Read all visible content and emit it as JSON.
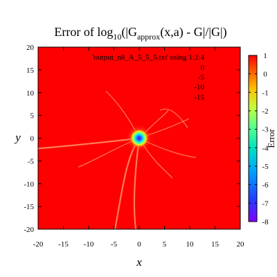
{
  "chart_data": {
    "type": "heatmap",
    "title": {
      "prefix": "Error of log",
      "base": "10",
      "mid": "(|G",
      "sub": "approx",
      "suffix": "(x,a) - G|/|G|)"
    },
    "xlabel": "x",
    "ylabel": "y",
    "colorbar_label": "Error",
    "xlim": [
      -20,
      20
    ],
    "ylim": [
      -20,
      20
    ],
    "x_ticks": [
      -20,
      -15,
      -10,
      -5,
      0,
      5,
      10,
      15,
      20
    ],
    "y_ticks": [
      -20,
      -15,
      -10,
      -5,
      0,
      5,
      10,
      15,
      20
    ],
    "colorbar_range": [
      -8,
      1
    ],
    "colorbar_ticks": [
      1,
      0,
      -1,
      -2,
      -3,
      -4,
      -5,
      -6,
      -7,
      -8
    ],
    "key_title": "'output_n8_A_5_5_5.txt' using 1:2:4",
    "key_levels": [
      "0",
      "-5",
      "-10",
      "-15"
    ],
    "background_value": 1,
    "minimum_center": {
      "x": 0,
      "y": 0,
      "value": -8
    }
  },
  "colors": {
    "background": "#ff0000",
    "palette": [
      "#8000ff",
      "#0060ff",
      "#00d0e0",
      "#40ffa0",
      "#c0ff40",
      "#ffc000",
      "#ff0000"
    ]
  }
}
